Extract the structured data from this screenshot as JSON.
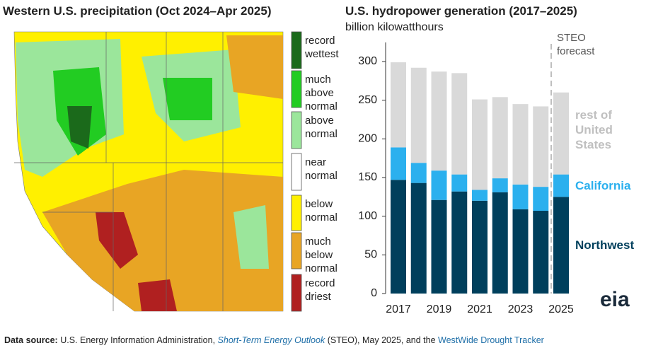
{
  "chart_data": [
    {
      "type": "map",
      "title": "Western U.S. precipitation (Oct 2024–Apr 2025)",
      "legend": [
        {
          "label": "record wettest",
          "color": "#1b6a1b"
        },
        {
          "label": "much above normal",
          "color": "#22cc22"
        },
        {
          "label": "above normal",
          "color": "#9be69b"
        },
        {
          "label": "near normal",
          "color": "#ffffff"
        },
        {
          "label": "below normal",
          "color": "#fff000"
        },
        {
          "label": "much below normal",
          "color": "#e8a524"
        },
        {
          "label": "record driest",
          "color": "#b02020"
        }
      ]
    },
    {
      "type": "stacked-bar",
      "title": "U.S. hydropower generation (2017–2025)",
      "subtitle": "billion kilowatthours",
      "categories": [
        "2017",
        null,
        "2019",
        null,
        "2021",
        null,
        "2023",
        null,
        "2025"
      ],
      "series": [
        {
          "name": "Northwest",
          "color": "#003f5c",
          "values": [
            147,
            143,
            121,
            132,
            120,
            131,
            109,
            107,
            125
          ]
        },
        {
          "name": "California",
          "color": "#2bb0ee",
          "values": [
            42,
            26,
            38,
            22,
            14,
            18,
            32,
            31,
            29
          ]
        },
        {
          "name": "rest of United States",
          "color": "#d9d9d9",
          "values": [
            110,
            123,
            128,
            131,
            117,
            105,
            104,
            104,
            106
          ]
        }
      ],
      "ylim": [
        0,
        300
      ],
      "yticks": [
        0,
        50,
        100,
        150,
        200,
        250,
        300
      ],
      "annotation": "STEO forecast",
      "logo": "eia"
    }
  ],
  "footer": {
    "label": "Data source:",
    "text1": " U.S. Energy Information Administration, ",
    "link1": "Short-Term Energy Outlook",
    "text2": " (STEO), May 2025, and the ",
    "link2": "WestWide Drought Tracker"
  }
}
